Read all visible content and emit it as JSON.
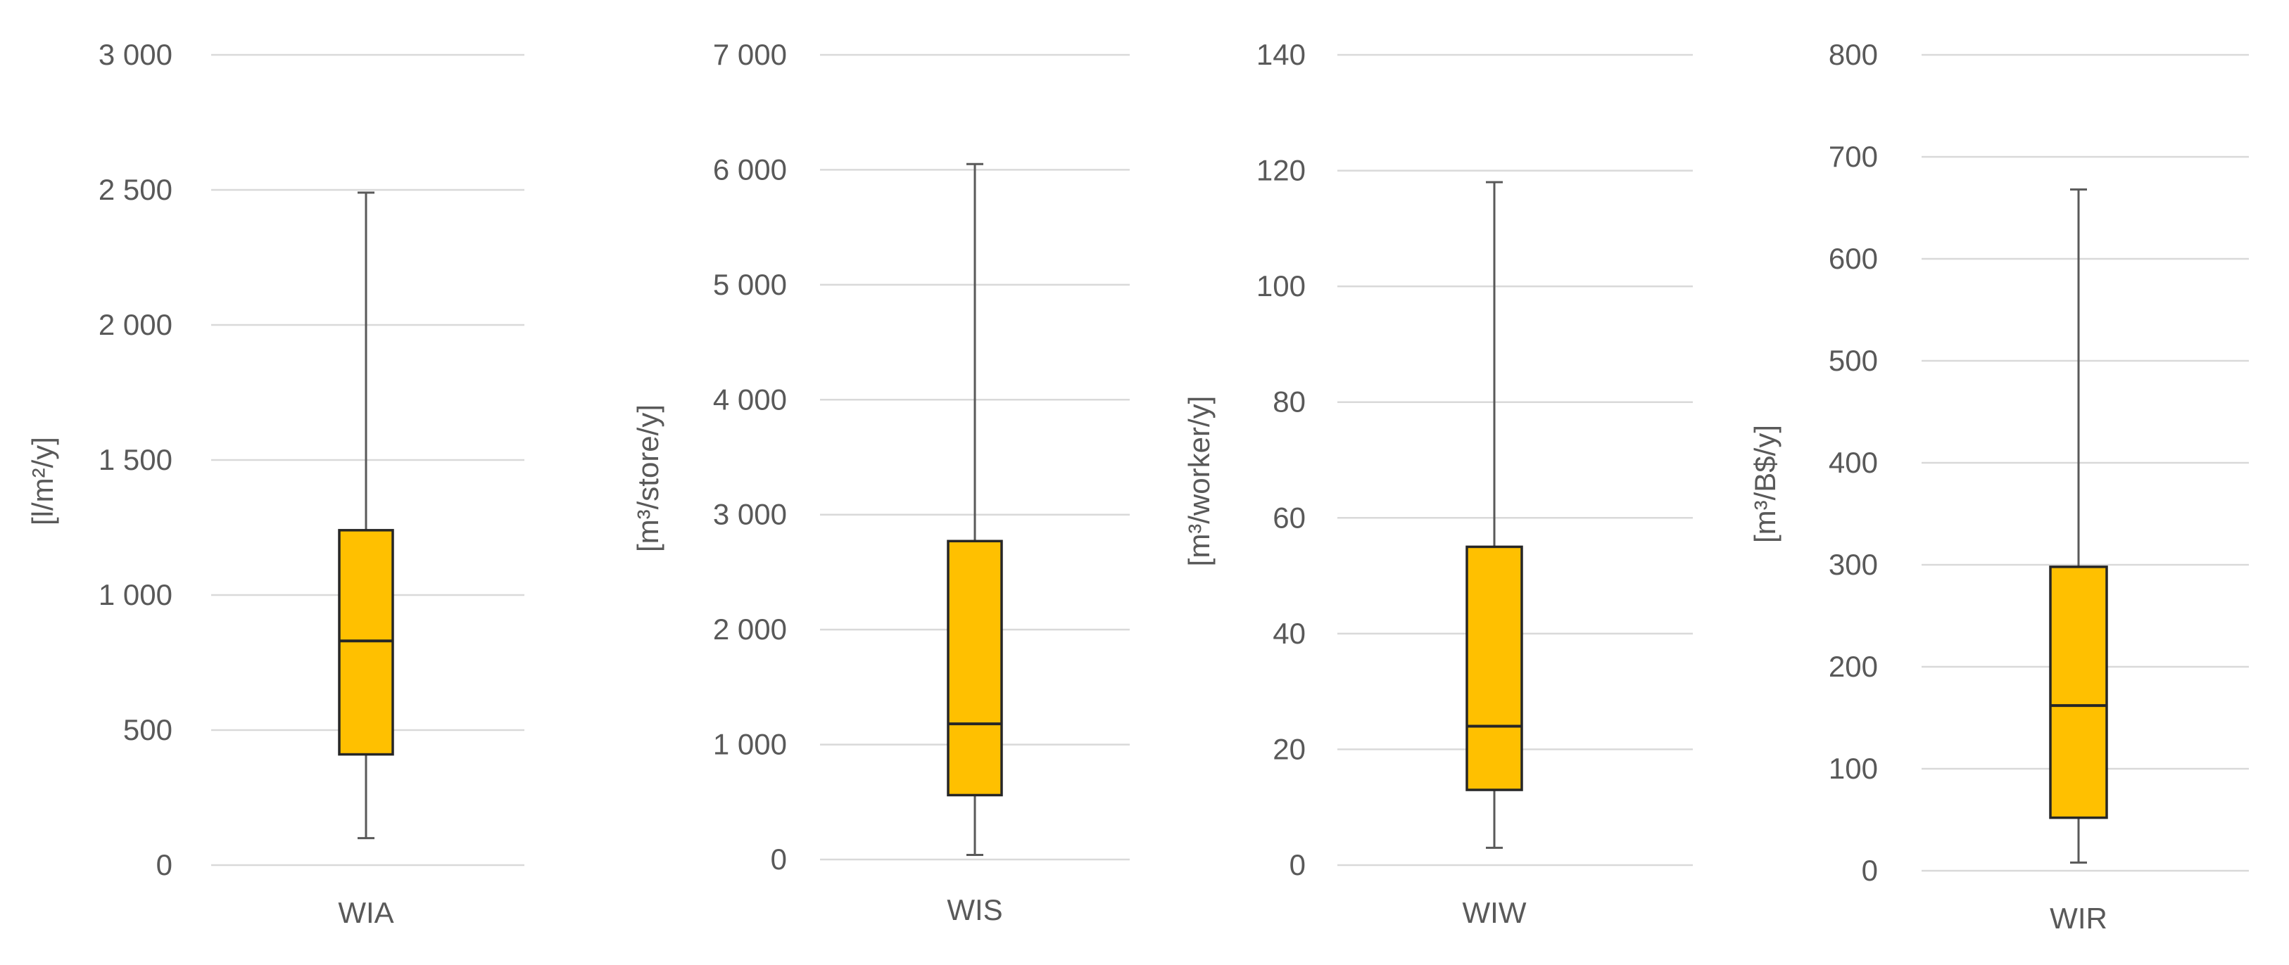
{
  "colors": {
    "box_fill": "#FFC000",
    "box_stroke": "#262626",
    "whisker": "#595959",
    "grid": "#D9D9D9",
    "text": "#595959"
  },
  "chart_data": [
    {
      "type": "box",
      "category": "WIA",
      "ylabel": "[l/m²/y]",
      "ylim": [
        0,
        3000
      ],
      "yticks": [
        0,
        500,
        1000,
        1500,
        2000,
        2500,
        3000
      ],
      "ytick_labels": [
        "0",
        "500",
        "1 000",
        "1 500",
        "2 000",
        "2 500",
        "3 000"
      ],
      "min": 100,
      "q1": 410,
      "median": 830,
      "q3": 1240,
      "max": 2490,
      "grid": true
    },
    {
      "type": "box",
      "category": "WIS",
      "ylabel": "[m³/store/y]",
      "ylim": [
        0,
        7000
      ],
      "yticks": [
        0,
        1000,
        2000,
        3000,
        4000,
        5000,
        6000,
        7000
      ],
      "ytick_labels": [
        "0",
        "1 000",
        "2 000",
        "3 000",
        "4 000",
        "5 000",
        "6 000",
        "7 000"
      ],
      "min": 40,
      "q1": 560,
      "median": 1180,
      "q3": 2770,
      "max": 6050,
      "grid": true
    },
    {
      "type": "box",
      "category": "WIW",
      "ylabel": "[m³/worker/y]",
      "ylim": [
        0,
        140
      ],
      "yticks": [
        0,
        20,
        40,
        60,
        80,
        100,
        120,
        140
      ],
      "ytick_labels": [
        "0",
        "20",
        "40",
        "60",
        "80",
        "100",
        "120",
        "140"
      ],
      "min": 3,
      "q1": 13,
      "median": 24,
      "q3": 55,
      "max": 118,
      "grid": true
    },
    {
      "type": "box",
      "category": "WIR",
      "ylabel": "[m³/B$/y]",
      "ylim": [
        0,
        800
      ],
      "yticks": [
        0,
        100,
        200,
        300,
        400,
        500,
        600,
        700,
        800
      ],
      "ytick_labels": [
        "0",
        "100",
        "200",
        "300",
        "400",
        "500",
        "600",
        "700",
        "800"
      ],
      "min": 8,
      "q1": 52,
      "median": 162,
      "q3": 298,
      "max": 668,
      "grid": true
    }
  ]
}
